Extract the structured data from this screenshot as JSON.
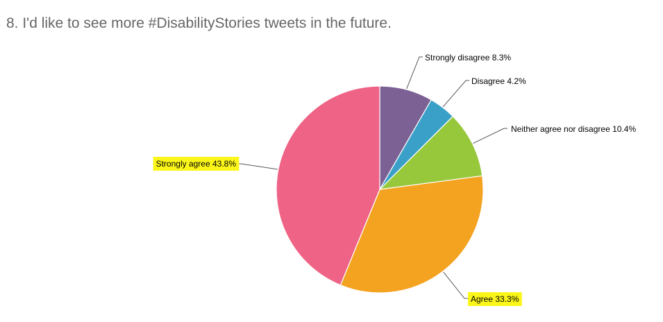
{
  "question": {
    "title": "8. I'd like to see more #DisabilityStories tweets in the future."
  },
  "chart_data": {
    "type": "pie",
    "title": "8. I'd like to see more #DisabilityStories tweets in the future.",
    "start_angle_deg": 0,
    "direction": "clockwise",
    "highlight_color": "#fbf61a",
    "slices": [
      {
        "label": "Strongly disagree 8.3%",
        "name": "Strongly disagree",
        "value": 8.3,
        "color": "#7c6194",
        "highlighted": false
      },
      {
        "label": "Disagree 4.2%",
        "name": "Disagree",
        "value": 4.2,
        "color": "#3aa0c7",
        "highlighted": false
      },
      {
        "label": "Neither agree nor disagree 10.4%",
        "name": "Neither agree nor disagree",
        "value": 10.4,
        "color": "#97c83c",
        "highlighted": false
      },
      {
        "label": "Agree 33.3%",
        "name": "Agree",
        "value": 33.3,
        "color": "#f4a321",
        "highlighted": true
      },
      {
        "label": "Strongly agree 43.8%",
        "name": "Strongly agree",
        "value": 43.8,
        "color": "#ee6386",
        "highlighted": true
      }
    ]
  }
}
